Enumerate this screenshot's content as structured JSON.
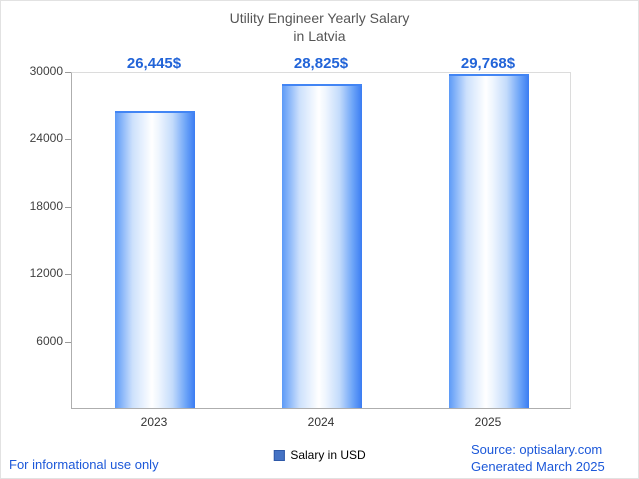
{
  "title": {
    "line1": "Utility Engineer Yearly Salary",
    "line2": "in Latvia"
  },
  "chart_data": {
    "type": "bar",
    "title": "Utility Engineer Yearly Salary in Latvia",
    "categories": [
      "2023",
      "2024",
      "2025"
    ],
    "values": [
      26445,
      28825,
      29768
    ],
    "value_labels": [
      "26,445$",
      "28,825$",
      "29,768$"
    ],
    "series_name": "Salary in USD",
    "legend": [
      "Salary in USD"
    ],
    "legend_position": "bottom",
    "xlabel": "",
    "ylabel": "",
    "ylim": [
      0,
      30000
    ],
    "yticks": [
      6000,
      12000,
      18000,
      24000,
      30000
    ],
    "grid": false,
    "bar_gradient": [
      "#5c9af7",
      "#ffffff",
      "#3a7cf2"
    ],
    "value_label_color": "#2264d8"
  },
  "footer": {
    "left": "For informational use only",
    "source": "Source: optisalary.com",
    "generated": "Generated March 2025"
  }
}
